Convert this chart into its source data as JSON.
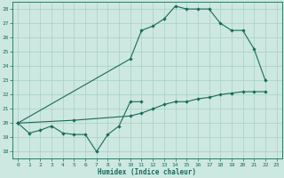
{
  "background_color": "#cce8e0",
  "grid_color": "#aacfc5",
  "line_color": "#1a6b5a",
  "xlabel": "Humidex (Indice chaleur)",
  "xlim": [
    -0.5,
    23.5
  ],
  "ylim": [
    17.5,
    28.5
  ],
  "xticks": [
    0,
    1,
    2,
    3,
    4,
    5,
    6,
    7,
    8,
    9,
    10,
    11,
    12,
    13,
    14,
    15,
    16,
    17,
    18,
    19,
    20,
    21,
    22,
    23
  ],
  "yticks": [
    18,
    19,
    20,
    21,
    22,
    23,
    24,
    25,
    26,
    27,
    28
  ],
  "series": [
    {
      "x": [
        0,
        1,
        2,
        3,
        4,
        5,
        6,
        7,
        8,
        9,
        10,
        11
      ],
      "y": [
        20.0,
        19.3,
        19.5,
        19.8,
        19.3,
        19.2,
        19.2,
        18.0,
        19.2,
        19.8,
        21.5,
        21.5
      ]
    },
    {
      "x": [
        0,
        10,
        11,
        12,
        13,
        14,
        15,
        16,
        17,
        18,
        19,
        20,
        21,
        22
      ],
      "y": [
        20.0,
        24.5,
        26.5,
        26.8,
        27.3,
        28.2,
        28.0,
        28.0,
        28.0,
        27.0,
        26.5,
        26.5,
        25.2,
        23.0
      ]
    },
    {
      "x": [
        0,
        5,
        10,
        11,
        12,
        13,
        14,
        15,
        16,
        17,
        18,
        19,
        20,
        21,
        22
      ],
      "y": [
        20.0,
        20.2,
        20.5,
        20.7,
        21.0,
        21.3,
        21.5,
        21.5,
        21.7,
        21.8,
        22.0,
        22.1,
        22.2,
        22.2,
        22.2
      ]
    }
  ]
}
